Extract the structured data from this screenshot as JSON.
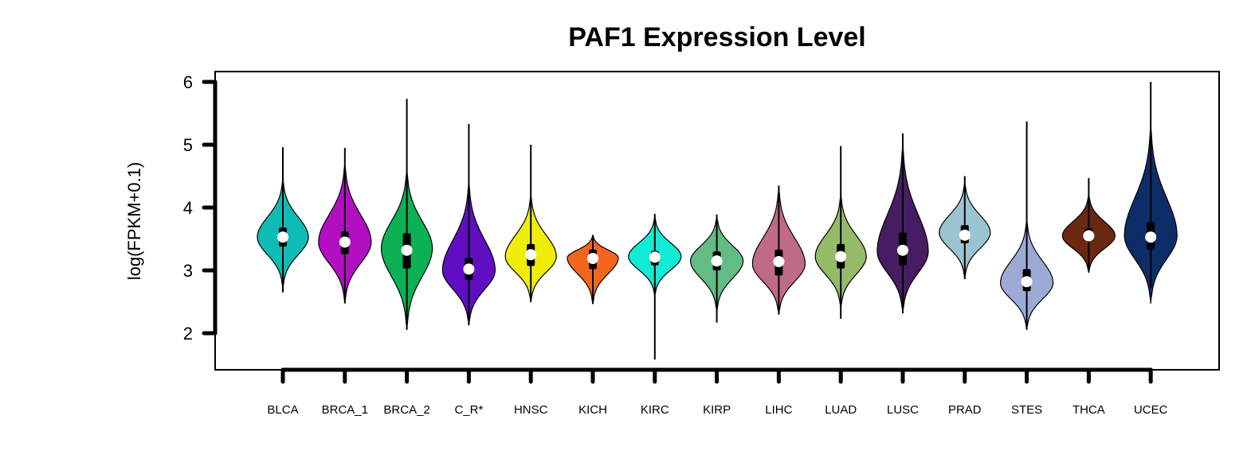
{
  "chart_data": {
    "type": "violin",
    "title": "PAF1 Expression Level",
    "xlabel": "",
    "ylabel": "log(FPKM+0.1)",
    "ylim": [
      1.4,
      6.2
    ],
    "yticks": [
      2,
      3,
      4,
      5,
      6
    ],
    "grid": false,
    "legend": "none",
    "categories": [
      "BLCA",
      "BRCA_1",
      "BRCA_2",
      "C_R*",
      "HNSC",
      "KICH",
      "KIRC",
      "KIRP",
      "LIHC",
      "LUAD",
      "LUSC",
      "PRAD",
      "STES",
      "THCA",
      "UCEC"
    ],
    "series": [
      {
        "color": "#0fbcb5",
        "median": 3.53,
        "q1": 3.38,
        "q3": 3.68,
        "min": 2.65,
        "max": 4.96,
        "vmin": 2.72,
        "vmax": 4.45,
        "peak": 3.53,
        "halfwidth": 32
      },
      {
        "color": "#b20fc2",
        "median": 3.45,
        "q1": 3.26,
        "q3": 3.62,
        "min": 2.48,
        "max": 4.95,
        "vmin": 2.48,
        "vmax": 4.7,
        "peak": 3.45,
        "halfwidth": 33
      },
      {
        "color": "#0bb154",
        "median": 3.32,
        "q1": 3.03,
        "q3": 3.59,
        "min": 2.06,
        "max": 5.73,
        "vmin": 2.06,
        "vmax": 4.6,
        "peak": 3.35,
        "halfwidth": 32
      },
      {
        "color": "#5f0fc1",
        "median": 3.02,
        "q1": 2.85,
        "q3": 3.2,
        "min": 2.13,
        "max": 5.33,
        "vmin": 2.13,
        "vmax": 4.4,
        "peak": 3.0,
        "halfwidth": 33
      },
      {
        "color": "#eeee0a",
        "median": 3.25,
        "q1": 3.07,
        "q3": 3.42,
        "min": 2.5,
        "max": 5.0,
        "vmin": 2.5,
        "vmax": 4.2,
        "peak": 3.22,
        "halfwidth": 32
      },
      {
        "color": "#f3661b",
        "median": 3.19,
        "q1": 3.02,
        "q3": 3.33,
        "min": 2.47,
        "max": 3.56,
        "vmin": 2.47,
        "vmax": 3.56,
        "peak": 3.2,
        "halfwidth": 32
      },
      {
        "color": "#12ebd6",
        "median": 3.21,
        "q1": 3.08,
        "q3": 3.31,
        "min": 1.58,
        "max": 3.9,
        "vmin": 2.6,
        "vmax": 3.85,
        "peak": 3.22,
        "halfwidth": 33
      },
      {
        "color": "#63bb86",
        "median": 3.15,
        "q1": 3.0,
        "q3": 3.3,
        "min": 2.17,
        "max": 3.89,
        "vmin": 2.35,
        "vmax": 3.85,
        "peak": 3.15,
        "halfwidth": 33
      },
      {
        "color": "#c06a84",
        "median": 3.14,
        "q1": 2.92,
        "q3": 3.33,
        "min": 2.3,
        "max": 4.35,
        "vmin": 2.3,
        "vmax": 4.3,
        "peak": 3.1,
        "halfwidth": 33
      },
      {
        "color": "#95ba68",
        "median": 3.22,
        "q1": 3.03,
        "q3": 3.42,
        "min": 2.23,
        "max": 4.98,
        "vmin": 2.4,
        "vmax": 4.2,
        "peak": 3.22,
        "halfwidth": 32
      },
      {
        "color": "#461c62",
        "median": 3.32,
        "q1": 3.08,
        "q3": 3.6,
        "min": 2.32,
        "max": 5.18,
        "vmin": 2.32,
        "vmax": 5.0,
        "peak": 3.3,
        "halfwidth": 32
      },
      {
        "color": "#9bc4d2",
        "median": 3.56,
        "q1": 3.43,
        "q3": 3.72,
        "min": 2.86,
        "max": 4.5,
        "vmin": 2.88,
        "vmax": 4.4,
        "peak": 3.6,
        "halfwidth": 32
      },
      {
        "color": "#9daad6",
        "median": 2.82,
        "q1": 2.67,
        "q3": 3.02,
        "min": 2.06,
        "max": 5.37,
        "vmin": 2.06,
        "vmax": 3.8,
        "peak": 2.8,
        "halfwidth": 33
      },
      {
        "color": "#6b2811",
        "median": 3.55,
        "q1": 3.48,
        "q3": 3.67,
        "min": 2.97,
        "max": 4.47,
        "vmin": 2.97,
        "vmax": 4.2,
        "peak": 3.55,
        "halfwidth": 33
      },
      {
        "color": "#0d2d68",
        "median": 3.53,
        "q1": 3.33,
        "q3": 3.77,
        "min": 2.72,
        "max": 6.0,
        "vmin": 2.48,
        "vmax": 5.3,
        "peak": 3.55,
        "halfwidth": 33
      }
    ]
  }
}
